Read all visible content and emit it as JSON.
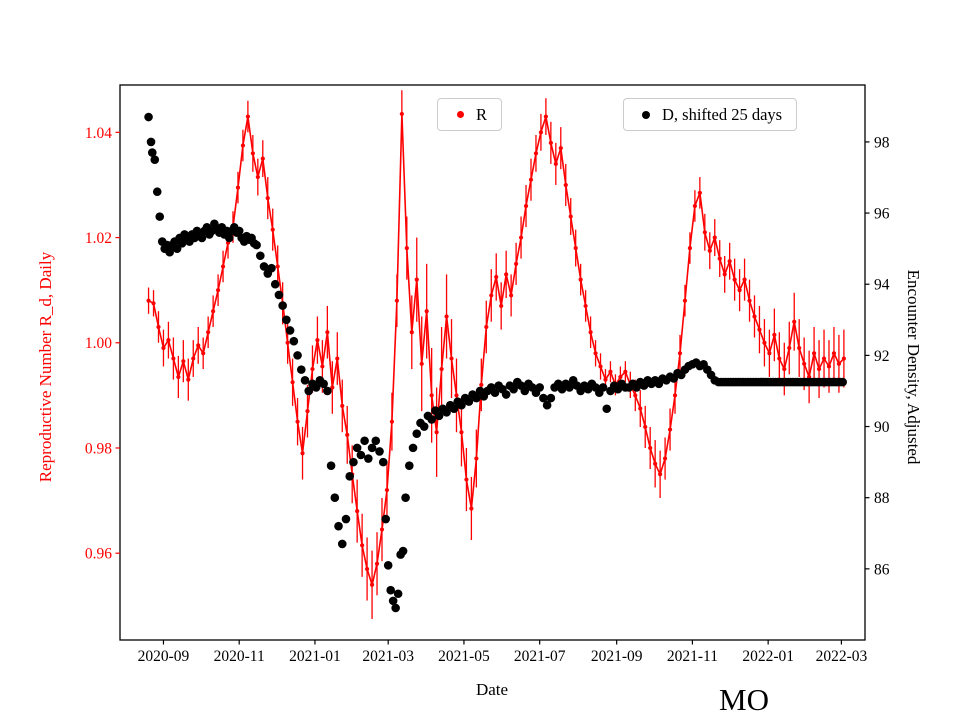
{
  "figure": {
    "legend": [
      {
        "label": "R",
        "color": "#ff0000"
      },
      {
        "label": "D, shifted 25 days",
        "color": "#000000"
      }
    ],
    "colors": {
      "r_series": "#ff0000",
      "d_series": "#000000",
      "legend_border": "#cccccc",
      "spine": "#000000"
    }
  },
  "chart_data": {
    "type": "scatter",
    "title": "MO",
    "xlabel": "Date",
    "x_axis": {
      "domain": [
        "2020-07-28",
        "2022-03-20"
      ],
      "tick_labels": [
        "2020-09",
        "2020-11",
        "2021-01",
        "2021-03",
        "2021-05",
        "2021-07",
        "2021-09",
        "2021-11",
        "2022-01",
        "2022-03"
      ]
    },
    "y_left": {
      "label": "Reproductive Number R_d, Daily",
      "color": "#ff0000",
      "ticks": [
        0.96,
        0.98,
        1.0,
        1.02,
        1.04
      ],
      "lim": [
        0.9435,
        1.049
      ]
    },
    "y_right": {
      "label": "Encounter Density, Adjusted",
      "color": "#000000",
      "ticks": [
        86,
        88,
        90,
        92,
        94,
        96,
        98
      ],
      "lim": [
        84.0,
        99.6
      ]
    },
    "series": [
      {
        "name": "R",
        "axis": "left",
        "style": "errorbar-scatter",
        "color": "#ff0000",
        "start_date": "2020-08-20",
        "step_days": 4,
        "values": [
          1.008,
          1.0075,
          1.003,
          0.999,
          1.0005,
          0.997,
          0.9935,
          0.9965,
          0.993,
          0.997,
          0.9995,
          0.998,
          1.002,
          1.006,
          1.01,
          1.0145,
          1.019,
          1.022,
          1.0295,
          1.0375,
          1.043,
          1.036,
          1.0315,
          1.035,
          1.0275,
          1.0215,
          1.0145,
          1.0075,
          1.0,
          0.9925,
          0.985,
          0.979,
          0.987,
          0.995,
          1.0005,
          0.9955,
          1.002,
          0.9915,
          0.997,
          0.988,
          0.9825,
          0.975,
          0.968,
          0.9615,
          0.957,
          0.954,
          0.958,
          0.9645,
          0.972,
          0.985,
          1.008,
          1.0435,
          1.018,
          1.002,
          1.012,
          0.996,
          1.006,
          0.99,
          0.983,
          0.995,
          1.005,
          0.997,
          0.99,
          0.983,
          0.974,
          0.9685,
          0.978,
          0.992,
          1.003,
          1.009,
          1.0125,
          1.007,
          1.013,
          1.009,
          1.015,
          1.02,
          1.026,
          1.031,
          1.036,
          1.04,
          1.043,
          1.038,
          1.034,
          1.037,
          1.03,
          1.024,
          1.018,
          1.012,
          1.007,
          1.002,
          0.998,
          0.9955,
          0.993,
          0.9945,
          0.992,
          0.9935,
          0.9945,
          0.992,
          0.99,
          0.9875,
          0.984,
          0.98,
          0.977,
          0.975,
          0.978,
          0.9835,
          0.99,
          0.998,
          1.008,
          1.018,
          1.026,
          1.0285,
          1.021,
          1.0175,
          1.02,
          1.016,
          1.013,
          1.0155,
          1.012,
          1.01,
          1.012,
          1.008,
          1.005,
          1.0025,
          1.0,
          0.998,
          1.0015,
          0.997,
          0.995,
          0.999,
          1.004,
          0.999,
          0.996,
          0.9935,
          0.998,
          0.995,
          0.997,
          0.9955,
          0.998,
          0.996,
          0.997
        ],
        "errors": [
          0.0025,
          0.0025,
          0.003,
          0.0035,
          0.0035,
          0.004,
          0.004,
          0.004,
          0.004,
          0.0035,
          0.0035,
          0.003,
          0.003,
          0.003,
          0.003,
          0.003,
          0.003,
          0.003,
          0.003,
          0.003,
          0.003,
          0.0035,
          0.0035,
          0.0035,
          0.004,
          0.004,
          0.004,
          0.004,
          0.004,
          0.0045,
          0.0045,
          0.005,
          0.005,
          0.0045,
          0.0045,
          0.005,
          0.005,
          0.005,
          0.005,
          0.005,
          0.0055,
          0.0055,
          0.006,
          0.006,
          0.006,
          0.0065,
          0.006,
          0.006,
          0.0055,
          0.0055,
          0.005,
          0.0045,
          0.006,
          0.007,
          0.008,
          0.009,
          0.009,
          0.009,
          0.0085,
          0.008,
          0.008,
          0.0075,
          0.007,
          0.0065,
          0.006,
          0.006,
          0.0055,
          0.005,
          0.005,
          0.005,
          0.0045,
          0.0045,
          0.0045,
          0.004,
          0.004,
          0.004,
          0.004,
          0.004,
          0.0035,
          0.0035,
          0.0035,
          0.004,
          0.004,
          0.004,
          0.004,
          0.0035,
          0.0035,
          0.003,
          0.003,
          0.003,
          0.0025,
          0.0025,
          0.002,
          0.002,
          0.002,
          0.002,
          0.002,
          0.0025,
          0.003,
          0.0035,
          0.004,
          0.004,
          0.0045,
          0.0045,
          0.004,
          0.004,
          0.0035,
          0.0035,
          0.003,
          0.003,
          0.003,
          0.003,
          0.0035,
          0.0035,
          0.0035,
          0.0035,
          0.0035,
          0.0035,
          0.004,
          0.004,
          0.004,
          0.004,
          0.004,
          0.0045,
          0.0045,
          0.0045,
          0.005,
          0.005,
          0.005,
          0.005,
          0.0055,
          0.0055,
          0.005,
          0.005,
          0.005,
          0.0055,
          0.0055,
          0.005,
          0.005,
          0.0055,
          0.0055
        ]
      },
      {
        "name": "D, shifted 25 days",
        "axis": "right",
        "style": "scatter",
        "color": "#000000",
        "start_date": "2020-08-20",
        "days": [
          0,
          2,
          3,
          5,
          7,
          9,
          11,
          13,
          15,
          17,
          19,
          21,
          23,
          25,
          27,
          29,
          31,
          33,
          35,
          37,
          39,
          41,
          43,
          45,
          47,
          49,
          51,
          53,
          55,
          57,
          59,
          61,
          63,
          65,
          67,
          69,
          71,
          73,
          75,
          77,
          79,
          81,
          83,
          85,
          87,
          90,
          93,
          96,
          99,
          102,
          105,
          108,
          111,
          114,
          117,
          120,
          123,
          126,
          129,
          132,
          135,
          138,
          141,
          144,
          147,
          150,
          153,
          156,
          159,
          162,
          165,
          168,
          171,
          174,
          177,
          180,
          183,
          186,
          189,
          191,
          193,
          195,
          197,
          199,
          201,
          203,
          205,
          207,
          210,
          213,
          216,
          219,
          222,
          225,
          228,
          231,
          234,
          237,
          240,
          243,
          246,
          249,
          252,
          255,
          258,
          261,
          264,
          267,
          270,
          273,
          276,
          279,
          282,
          285,
          288,
          291,
          294,
          297,
          300,
          303,
          306,
          309,
          312,
          315,
          318,
          321,
          324,
          327,
          330,
          333,
          336,
          339,
          342,
          345,
          348,
          351,
          354,
          357,
          360,
          363,
          366,
          369,
          372,
          375,
          378,
          381,
          384,
          387,
          390,
          393,
          396,
          399,
          402,
          405,
          408,
          411,
          414,
          417,
          420,
          423,
          426,
          429,
          432,
          435,
          438,
          441,
          444,
          447,
          450,
          453,
          456,
          459,
          461,
          463,
          465,
          467,
          469,
          471,
          473,
          475,
          477,
          479,
          481,
          483,
          485,
          487,
          489,
          491,
          493,
          495,
          497,
          499,
          501,
          503,
          505,
          507,
          509,
          511,
          513,
          515,
          517,
          519,
          521,
          523,
          525,
          527,
          529,
          531,
          533,
          535,
          537,
          539,
          541,
          543,
          545,
          547,
          549,
          551,
          553,
          555,
          557,
          559
        ],
        "values": [
          98.7,
          98.0,
          97.7,
          97.5,
          96.6,
          95.9,
          95.2,
          95.0,
          95.1,
          94.9,
          95.1,
          95.2,
          95.0,
          95.3,
          95.15,
          95.4,
          95.3,
          95.2,
          95.4,
          95.3,
          95.5,
          95.35,
          95.3,
          95.5,
          95.6,
          95.4,
          95.5,
          95.7,
          95.55,
          95.45,
          95.6,
          95.4,
          95.5,
          95.3,
          95.5,
          95.6,
          95.45,
          95.5,
          95.3,
          95.2,
          95.35,
          95.25,
          95.3,
          95.15,
          95.1,
          94.8,
          94.5,
          94.3,
          94.45,
          94.0,
          93.7,
          93.4,
          93.0,
          92.7,
          92.4,
          92.0,
          91.6,
          91.3,
          91.0,
          91.2,
          91.1,
          91.3,
          91.2,
          91.0,
          88.9,
          88.0,
          87.2,
          86.7,
          87.4,
          88.6,
          89.0,
          89.4,
          89.2,
          89.6,
          89.1,
          89.4,
          89.6,
          89.3,
          89.0,
          87.4,
          86.1,
          85.4,
          85.1,
          84.9,
          85.3,
          86.4,
          86.5,
          88.0,
          88.9,
          89.4,
          89.8,
          90.1,
          90.0,
          90.3,
          90.2,
          90.45,
          90.3,
          90.5,
          90.4,
          90.6,
          90.5,
          90.7,
          90.6,
          90.8,
          90.7,
          90.9,
          90.8,
          91.0,
          90.85,
          91.0,
          91.1,
          90.95,
          91.15,
          91.05,
          90.9,
          91.15,
          91.05,
          91.25,
          91.15,
          91.0,
          91.2,
          91.1,
          90.95,
          91.1,
          90.8,
          90.6,
          90.8,
          91.1,
          91.2,
          91.05,
          91.2,
          91.1,
          91.3,
          91.15,
          91.0,
          91.15,
          91.05,
          91.2,
          91.1,
          90.95,
          91.1,
          90.5,
          91.0,
          91.15,
          91.05,
          91.2,
          91.1,
          91.1,
          91.2,
          91.1,
          91.25,
          91.15,
          91.3,
          91.2,
          91.3,
          91.2,
          91.35,
          91.3,
          91.4,
          91.35,
          91.5,
          91.45,
          91.6,
          91.7,
          91.75,
          91.8,
          91.7,
          91.75,
          91.6,
          91.45,
          91.3,
          91.25,
          91.25,
          91.25,
          91.25,
          91.25,
          91.25,
          91.25,
          91.25,
          91.25,
          91.25,
          91.25,
          91.25,
          91.25,
          91.25,
          91.25,
          91.25,
          91.25,
          91.25,
          91.25,
          91.25,
          91.25,
          91.25,
          91.25,
          91.25,
          91.25,
          91.25,
          91.25,
          91.25,
          91.25,
          91.25,
          91.25,
          91.25,
          91.25,
          91.25,
          91.25,
          91.25,
          91.25,
          91.25,
          91.25,
          91.25,
          91.25,
          91.25,
          91.25,
          91.25,
          91.25,
          91.25,
          91.25,
          91.25,
          91.25,
          91.25,
          91.25
        ]
      }
    ]
  }
}
